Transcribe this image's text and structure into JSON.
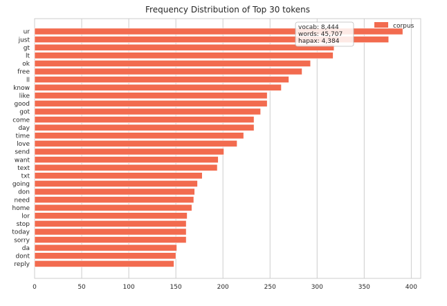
{
  "chart_data": {
    "type": "bar",
    "orientation": "horizontal",
    "title": "Frequency Distribution of Top 30 tokens",
    "xlabel": "",
    "ylabel": "",
    "xlim": [
      0,
      410
    ],
    "xticks": [
      0,
      50,
      100,
      150,
      200,
      250,
      300,
      350,
      400
    ],
    "grid": true,
    "legend_position": "top-right",
    "bar_color": "#f26b4f",
    "categories": [
      "ur",
      "just",
      "gt",
      "lt",
      "ok",
      "free",
      "ll",
      "know",
      "like",
      "good",
      "got",
      "come",
      "day",
      "time",
      "love",
      "send",
      "want",
      "text",
      "txt",
      "going",
      "don",
      "need",
      "home",
      "lor",
      "stop",
      "today",
      "sorry",
      "da",
      "dont",
      "reply"
    ],
    "series": [
      {
        "name": "corpus",
        "values": [
          391,
          376,
          318,
          317,
          293,
          284,
          270,
          262,
          247,
          247,
          240,
          233,
          233,
          222,
          215,
          201,
          195,
          194,
          178,
          173,
          170,
          169,
          167,
          162,
          161,
          161,
          161,
          151,
          150,
          148
        ]
      }
    ],
    "annotation": [
      "vocab: 8,444",
      "words: 45,707",
      "hapax: 4,384"
    ]
  }
}
